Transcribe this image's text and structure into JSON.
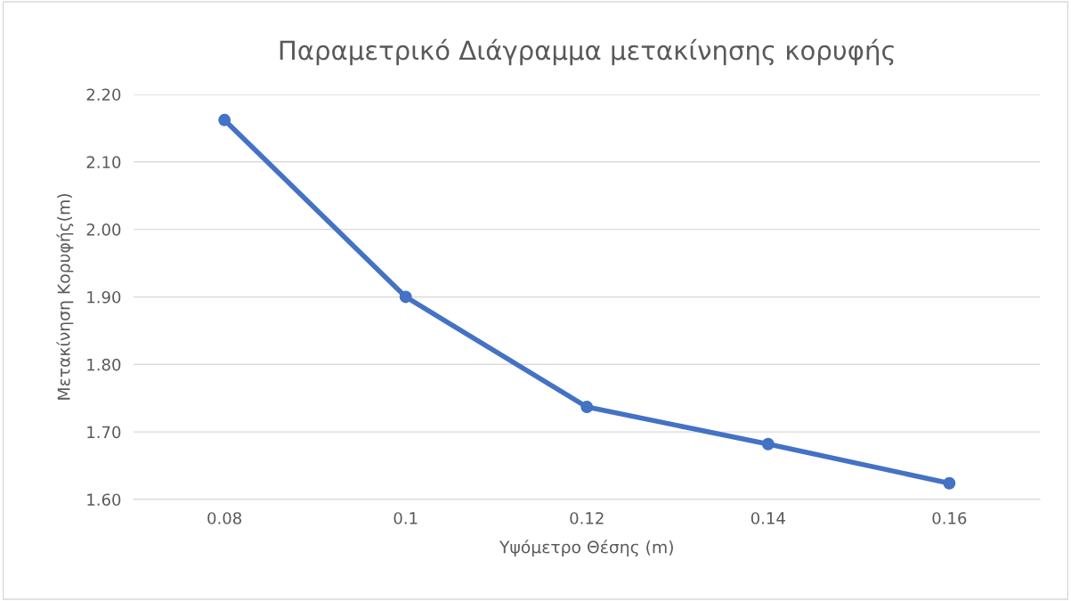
{
  "chart_data": {
    "type": "line",
    "title": "Παραμετρικό Διάγραμμα μετακίνησης κορυφής",
    "xlabel": "Υψόμετρο Θέσης (m)",
    "ylabel": "Μετακίνηση Κορυφής(m)",
    "categories": [
      "0.08",
      "0.1",
      "0.12",
      "0.14",
      "0.16"
    ],
    "series": [
      {
        "color": "#4472c4",
        "values": [
          2.162,
          1.9,
          1.737,
          1.682,
          1.624
        ]
      }
    ],
    "ylim": [
      1.6,
      2.2
    ],
    "yticks": [
      {
        "value": 1.6,
        "label": "1.60"
      },
      {
        "value": 1.7,
        "label": "1.70"
      },
      {
        "value": 1.8,
        "label": "1.80"
      },
      {
        "value": 1.9,
        "label": "1.90"
      },
      {
        "value": 2.0,
        "label": "2.00"
      },
      {
        "value": 2.1,
        "label": "2.10"
      },
      {
        "value": 2.2,
        "label": "2.20"
      }
    ],
    "grid": "y",
    "marker": "circle",
    "line_style": "solid"
  }
}
